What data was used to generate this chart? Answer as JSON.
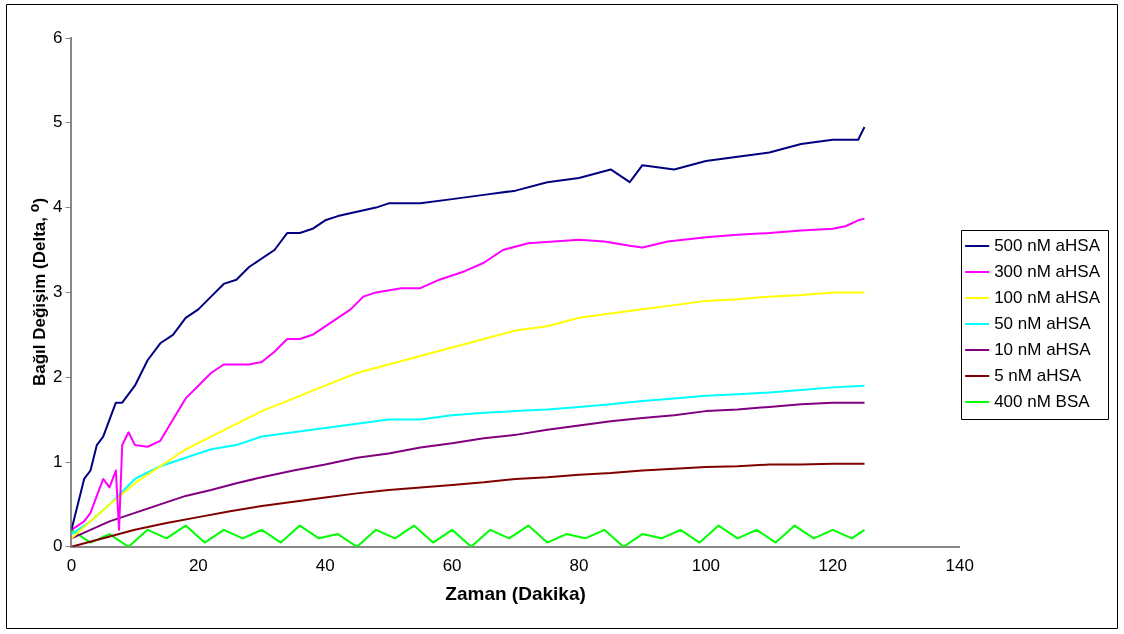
{
  "chart_data": {
    "type": "line",
    "xlabel": "Zaman (Dakika)",
    "ylabel": "Bağıl Değişim (Delta, $^{o}$)",
    "xlim": [
      0,
      140
    ],
    "xticks": [
      0,
      20,
      40,
      60,
      80,
      100,
      120,
      140
    ],
    "ylim": [
      0,
      6
    ],
    "yticks": [
      0,
      1,
      2,
      3,
      4,
      5,
      6
    ],
    "grid": false,
    "legend": "right",
    "marker": "none",
    "line_style": "solid",
    "series": [
      {
        "name": "500 nM aHSA",
        "color": "#000080",
        "x": [
          0,
          1,
          2,
          3,
          4,
          5,
          6,
          7,
          8,
          10,
          12,
          14,
          16,
          18,
          20,
          22,
          24,
          26,
          28,
          30,
          32,
          34,
          36,
          38,
          40,
          42,
          45,
          48,
          50,
          55,
          60,
          65,
          70,
          75,
          80,
          85,
          88,
          90,
          95,
          100,
          105,
          110,
          115,
          120,
          124,
          125
        ],
        "values": [
          0.2,
          0.5,
          0.8,
          0.9,
          1.2,
          1.3,
          1.5,
          1.7,
          1.7,
          1.9,
          2.2,
          2.4,
          2.5,
          2.7,
          2.8,
          2.95,
          3.1,
          3.15,
          3.3,
          3.4,
          3.5,
          3.7,
          3.7,
          3.75,
          3.85,
          3.9,
          3.95,
          4.0,
          4.05,
          4.05,
          4.1,
          4.15,
          4.2,
          4.3,
          4.35,
          4.45,
          4.3,
          4.5,
          4.45,
          4.55,
          4.6,
          4.65,
          4.75,
          4.8,
          4.8,
          4.95
        ]
      },
      {
        "name": "300 nM aHSA",
        "color": "#ff00ff",
        "x": [
          0,
          2,
          3,
          4,
          5,
          6,
          7,
          7.5,
          8,
          9,
          10,
          12,
          14,
          16,
          18,
          20,
          22,
          24,
          26,
          28,
          30,
          32,
          34,
          36,
          38,
          40,
          42,
          44,
          46,
          48,
          52,
          55,
          58,
          62,
          65,
          68,
          72,
          76,
          80,
          84,
          88,
          90,
          94,
          100,
          105,
          110,
          115,
          120,
          122,
          124,
          125
        ],
        "values": [
          0.2,
          0.3,
          0.4,
          0.6,
          0.8,
          0.7,
          0.9,
          0.2,
          1.2,
          1.35,
          1.2,
          1.18,
          1.25,
          1.5,
          1.75,
          1.9,
          2.05,
          2.15,
          2.15,
          2.15,
          2.18,
          2.3,
          2.45,
          2.45,
          2.5,
          2.6,
          2.7,
          2.8,
          2.95,
          3.0,
          3.05,
          3.05,
          3.15,
          3.25,
          3.35,
          3.5,
          3.58,
          3.6,
          3.62,
          3.6,
          3.55,
          3.53,
          3.6,
          3.65,
          3.68,
          3.7,
          3.73,
          3.75,
          3.78,
          3.85,
          3.87
        ]
      },
      {
        "name": "100 nM aHSA",
        "color": "#ffff00",
        "x": [
          0,
          3,
          6,
          10,
          14,
          18,
          22,
          26,
          30,
          35,
          40,
          45,
          50,
          55,
          60,
          65,
          70,
          75,
          80,
          85,
          90,
          95,
          100,
          105,
          110,
          115,
          120,
          125
        ],
        "values": [
          0.1,
          0.3,
          0.5,
          0.75,
          0.95,
          1.15,
          1.3,
          1.45,
          1.6,
          1.75,
          1.9,
          2.05,
          2.15,
          2.25,
          2.35,
          2.45,
          2.55,
          2.6,
          2.7,
          2.75,
          2.8,
          2.85,
          2.9,
          2.92,
          2.95,
          2.97,
          3.0,
          3.0
        ]
      },
      {
        "name": "50 nM aHSA",
        "color": "#00ffff",
        "x": [
          0,
          3,
          6,
          10,
          14,
          18,
          22,
          26,
          30,
          35,
          40,
          45,
          50,
          55,
          60,
          65,
          70,
          75,
          80,
          85,
          90,
          95,
          100,
          105,
          110,
          115,
          120,
          125
        ],
        "values": [
          0.15,
          0.3,
          0.5,
          0.8,
          0.95,
          1.05,
          1.15,
          1.2,
          1.3,
          1.35,
          1.4,
          1.45,
          1.5,
          1.5,
          1.55,
          1.58,
          1.6,
          1.62,
          1.65,
          1.68,
          1.72,
          1.75,
          1.78,
          1.8,
          1.82,
          1.85,
          1.88,
          1.9
        ]
      },
      {
        "name": "10 nM aHSA",
        "color": "#800080",
        "x": [
          0,
          3,
          6,
          10,
          14,
          18,
          22,
          26,
          30,
          35,
          40,
          45,
          50,
          55,
          60,
          65,
          70,
          75,
          80,
          85,
          90,
          95,
          100,
          105,
          110,
          115,
          120,
          125
        ],
        "values": [
          0.1,
          0.2,
          0.3,
          0.4,
          0.5,
          0.6,
          0.67,
          0.75,
          0.82,
          0.9,
          0.97,
          1.05,
          1.1,
          1.17,
          1.22,
          1.28,
          1.32,
          1.38,
          1.43,
          1.48,
          1.52,
          1.55,
          1.6,
          1.62,
          1.65,
          1.68,
          1.7,
          1.7
        ]
      },
      {
        "name": "5 nM aHSA",
        "color": "#800000",
        "x": [
          0,
          5,
          10,
          15,
          20,
          25,
          30,
          35,
          40,
          45,
          50,
          55,
          60,
          65,
          70,
          75,
          80,
          85,
          90,
          95,
          100,
          105,
          110,
          115,
          120,
          125
        ],
        "values": [
          0.0,
          0.1,
          0.2,
          0.28,
          0.35,
          0.42,
          0.48,
          0.53,
          0.58,
          0.63,
          0.67,
          0.7,
          0.73,
          0.76,
          0.8,
          0.82,
          0.85,
          0.87,
          0.9,
          0.92,
          0.94,
          0.95,
          0.97,
          0.97,
          0.98,
          0.98
        ]
      },
      {
        "name": "400 nM BSA",
        "color": "#00ff00",
        "x": [
          0,
          3,
          6,
          9,
          12,
          15,
          18,
          21,
          24,
          27,
          30,
          33,
          36,
          39,
          42,
          45,
          48,
          51,
          54,
          57,
          60,
          63,
          66,
          69,
          72,
          75,
          78,
          81,
          84,
          87,
          90,
          93,
          96,
          99,
          102,
          105,
          108,
          111,
          114,
          117,
          120,
          123,
          125
        ],
        "values": [
          0.2,
          0.05,
          0.15,
          0.0,
          0.2,
          0.1,
          0.25,
          0.05,
          0.2,
          0.1,
          0.2,
          0.05,
          0.25,
          0.1,
          0.15,
          0.0,
          0.2,
          0.1,
          0.25,
          0.05,
          0.2,
          0.0,
          0.2,
          0.1,
          0.25,
          0.05,
          0.15,
          0.1,
          0.2,
          0.0,
          0.15,
          0.1,
          0.2,
          0.05,
          0.25,
          0.1,
          0.2,
          0.05,
          0.25,
          0.1,
          0.2,
          0.1,
          0.2
        ]
      }
    ]
  }
}
